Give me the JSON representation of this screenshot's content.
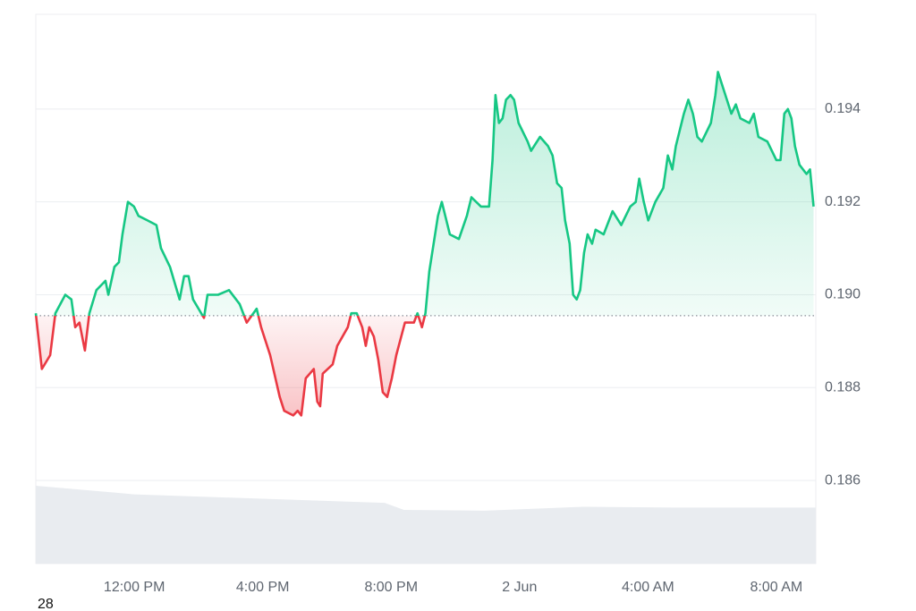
{
  "chart_data": {
    "type": "baseline-line",
    "annotation": "28",
    "baseline": 0.18955,
    "up_color": "#16c784",
    "down_color": "#ea3943",
    "x": [
      8.93,
      9.12,
      9.38,
      9.54,
      9.85,
      10.04,
      10.16,
      10.29,
      10.46,
      10.6,
      10.82,
      11.1,
      11.19,
      11.38,
      11.52,
      11.63,
      11.8,
      11.99,
      12.13,
      12.41,
      12.69,
      12.83,
      13.11,
      13.41,
      13.55,
      13.69,
      13.83,
      14.17,
      14.28,
      14.61,
      14.95,
      15.28,
      15.5,
      15.81,
      15.95,
      16.23,
      16.53,
      16.67,
      16.95,
      17.09,
      17.2,
      17.34,
      17.59,
      17.7,
      17.79,
      17.87,
      18.18,
      18.32,
      18.65,
      18.76,
      18.93,
      19.1,
      19.21,
      19.32,
      19.46,
      19.6,
      19.74,
      19.88,
      20.02,
      20.16,
      20.43,
      20.71,
      20.82,
      20.96,
      21.07,
      21.19,
      21.46,
      21.58,
      21.83,
      22.11,
      22.36,
      22.5,
      22.8,
      23.05,
      23.16,
      23.25,
      23.36,
      23.47,
      23.58,
      23.72,
      23.83,
      23.97,
      24.25,
      24.36,
      24.64,
      24.89,
      25.03,
      25.17,
      25.31,
      25.42,
      25.56,
      25.67,
      25.78,
      25.89,
      26.01,
      26.12,
      26.26,
      26.37,
      26.62,
      26.9,
      27.17,
      27.45,
      27.62,
      27.73,
      27.87,
      28.01,
      28.23,
      28.48,
      28.62,
      28.76,
      28.87,
      29.12,
      29.26,
      29.4,
      29.54,
      29.68,
      29.96,
      30.1,
      30.18,
      30.46,
      30.6,
      30.74,
      30.88,
      31.16,
      31.3,
      31.44,
      31.72,
      32.0,
      32.13,
      32.25,
      32.36,
      32.47,
      32.58,
      32.72,
      32.94,
      33.05,
      33.16
    ],
    "values": [
      0.1896,
      0.1884,
      0.1887,
      0.1896,
      0.19,
      0.1899,
      0.1893,
      0.1894,
      0.1888,
      0.1896,
      0.1901,
      0.1903,
      0.19,
      0.1906,
      0.1907,
      0.1913,
      0.192,
      0.1919,
      0.1917,
      0.1916,
      0.1915,
      0.191,
      0.1906,
      0.1899,
      0.1904,
      0.1904,
      0.1899,
      0.1895,
      0.19,
      0.19,
      0.1901,
      0.1898,
      0.1894,
      0.1897,
      0.1893,
      0.1887,
      0.1878,
      0.1875,
      0.1874,
      0.1875,
      0.1874,
      0.1882,
      0.1884,
      0.1877,
      0.1876,
      0.1883,
      0.1885,
      0.1889,
      0.1893,
      0.1896,
      0.1896,
      0.1893,
      0.1889,
      0.1893,
      0.1891,
      0.1886,
      0.1879,
      0.1878,
      0.1882,
      0.1887,
      0.1894,
      0.1894,
      0.1896,
      0.1893,
      0.1896,
      0.1905,
      0.1917,
      0.192,
      0.1913,
      0.1912,
      0.1917,
      0.1921,
      0.1919,
      0.1919,
      0.1929,
      0.1943,
      0.1937,
      0.1938,
      0.1942,
      0.1943,
      0.1942,
      0.1937,
      0.1933,
      0.1931,
      0.1934,
      0.1932,
      0.193,
      0.1924,
      0.1923,
      0.1916,
      0.1911,
      0.19,
      0.1899,
      0.1901,
      0.1909,
      0.1913,
      0.1911,
      0.1914,
      0.1913,
      0.1918,
      0.1915,
      0.1919,
      0.192,
      0.1925,
      0.192,
      0.1916,
      0.192,
      0.1923,
      0.193,
      0.1927,
      0.1932,
      0.1939,
      0.1942,
      0.1939,
      0.1934,
      0.1933,
      0.1937,
      0.1943,
      0.1948,
      0.1942,
      0.1939,
      0.1941,
      0.1938,
      0.1937,
      0.1939,
      0.1934,
      0.1933,
      0.1929,
      0.1929,
      0.1939,
      0.194,
      0.1938,
      0.1932,
      0.1928,
      0.1926,
      0.1927,
      0.1919
    ],
    "xlim": [
      8.93,
      33.23
    ],
    "ylim": [
      0.18421,
      0.19604
    ],
    "xticks": [
      {
        "value": 12,
        "label": "12:00 PM"
      },
      {
        "value": 16,
        "label": "4:00 PM"
      },
      {
        "value": 20,
        "label": "8:00 PM"
      },
      {
        "value": 24,
        "label": "2 Jun"
      },
      {
        "value": 28,
        "label": "4:00 AM"
      },
      {
        "value": 32,
        "label": "8:00 AM"
      }
    ],
    "yticks": [
      0.186,
      0.188,
      {
        "value": 0.19,
        "label": "0.190"
      },
      0.192,
      0.194
    ],
    "grid": true,
    "volume": {
      "color": "#e9ecf0",
      "x": [
        8.93,
        12.0,
        16.2,
        19.8,
        20.4,
        22.9,
        26.0,
        28.8,
        33.23
      ],
      "values": [
        100,
        89,
        83,
        78,
        69,
        68,
        73,
        72,
        72
      ],
      "ylim": [
        0,
        100
      ]
    }
  }
}
